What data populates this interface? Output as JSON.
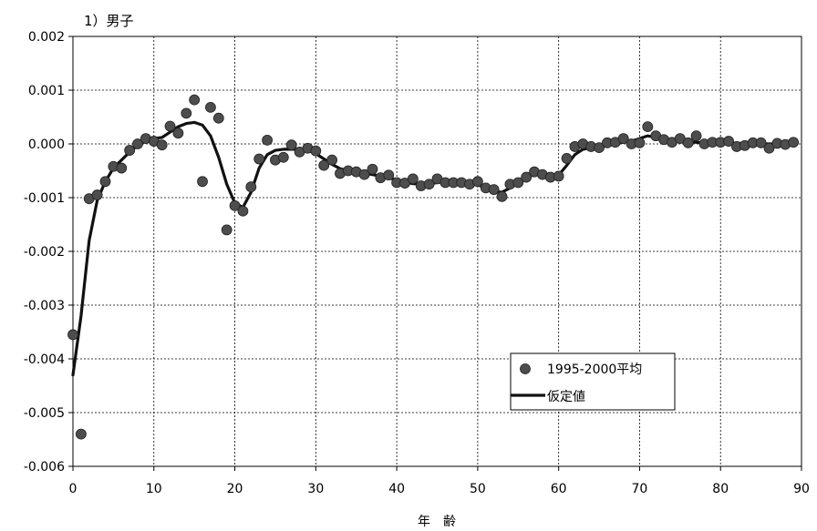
{
  "chart_data": {
    "type": "scatter",
    "title": "1）男子",
    "xlabel": "年　齢",
    "ylabel": "",
    "xlim": [
      0,
      90
    ],
    "ylim": [
      -0.006,
      0.002
    ],
    "x_ticks": [
      "0",
      "10",
      "20",
      "30",
      "40",
      "50",
      "60",
      "70",
      "80",
      "90"
    ],
    "y_ticks": [
      "0.002",
      "0.001",
      "0.000",
      "-0.001",
      "-0.002",
      "-0.003",
      "-0.004",
      "-0.005",
      "-0.006"
    ],
    "grid": true,
    "legend_position": "lower-right",
    "series": [
      {
        "name": "1995-2000平均",
        "kind": "points",
        "color": "#4d4d4d",
        "x": [
          0,
          1,
          2,
          3,
          4,
          5,
          6,
          7,
          8,
          9,
          10,
          11,
          12,
          13,
          14,
          15,
          16,
          17,
          18,
          19,
          20,
          21,
          22,
          23,
          24,
          25,
          26,
          27,
          28,
          29,
          30,
          31,
          32,
          33,
          34,
          35,
          36,
          37,
          38,
          39,
          40,
          41,
          42,
          43,
          44,
          45,
          46,
          47,
          48,
          49,
          50,
          51,
          52,
          53,
          54,
          55,
          56,
          57,
          58,
          59,
          60,
          61,
          62,
          63,
          64,
          65,
          66,
          67,
          68,
          69,
          70,
          71,
          72,
          73,
          74,
          75,
          76,
          77,
          78,
          79,
          80,
          81,
          82,
          83,
          84,
          85,
          86,
          87,
          88,
          89
        ],
        "y": [
          -0.00355,
          -0.0054,
          -0.00102,
          -0.00095,
          -0.0007,
          -0.00042,
          -0.00045,
          -0.00012,
          0.0,
          0.0001,
          5e-05,
          -2e-05,
          0.00033,
          0.0002,
          0.00057,
          0.00082,
          -0.0007,
          0.00068,
          0.00048,
          -0.0016,
          -0.00115,
          -0.00125,
          -0.0008,
          -0.00028,
          7e-05,
          -0.0003,
          -0.00025,
          -2e-05,
          -0.00015,
          -8e-05,
          -0.00013,
          -0.0004,
          -0.0003,
          -0.00055,
          -0.0005,
          -0.00052,
          -0.00057,
          -0.00047,
          -0.00063,
          -0.00058,
          -0.00072,
          -0.00073,
          -0.00065,
          -0.00078,
          -0.00075,
          -0.00065,
          -0.00072,
          -0.00072,
          -0.00072,
          -0.00075,
          -0.0007,
          -0.00082,
          -0.00085,
          -0.00098,
          -0.00075,
          -0.00072,
          -0.00062,
          -0.00052,
          -0.00057,
          -0.00062,
          -0.0006,
          -0.00027,
          -5e-05,
          0.0,
          -5e-05,
          -7e-05,
          2e-05,
          3e-05,
          0.0001,
          0.0,
          2e-05,
          0.00032,
          0.00015,
          8e-05,
          3e-05,
          0.0001,
          2e-05,
          0.00015,
          0.0,
          3e-05,
          3e-05,
          5e-05,
          -5e-05,
          -3e-05,
          2e-05,
          2e-05,
          -8e-05,
          1e-05,
          -1e-05,
          3e-05
        ]
      },
      {
        "name": "仮定値",
        "kind": "line",
        "color": "#111111",
        "x": [
          0,
          1,
          2,
          3,
          4,
          5,
          6,
          7,
          8,
          9,
          10,
          11,
          12,
          13,
          14,
          15,
          16,
          17,
          18,
          19,
          20,
          21,
          22,
          23,
          24,
          25,
          26,
          27,
          28,
          29,
          30,
          31,
          32,
          33,
          34,
          35,
          36,
          37,
          38,
          39,
          40,
          41,
          42,
          43,
          44,
          45,
          46,
          47,
          48,
          49,
          50,
          51,
          52,
          53,
          54,
          55,
          56,
          57,
          58,
          59,
          60,
          61,
          62,
          63,
          64,
          65,
          66,
          67,
          68,
          69,
          70,
          71,
          72,
          73,
          74,
          75,
          76,
          77,
          78,
          79,
          80,
          81,
          82,
          83,
          84,
          85,
          86,
          87,
          88,
          89
        ],
        "y": [
          -0.0043,
          -0.0032,
          -0.0018,
          -0.00105,
          -0.0007,
          -0.00045,
          -0.0003,
          -0.00015,
          -3e-05,
          5e-05,
          0.0001,
          0.00012,
          0.00022,
          0.00032,
          0.00038,
          0.0004,
          0.00035,
          0.00015,
          -0.00025,
          -0.00075,
          -0.0011,
          -0.00118,
          -0.0009,
          -0.00045,
          -0.0002,
          -0.00012,
          -0.0001,
          -0.0001,
          -0.0001,
          -0.00012,
          -0.00018,
          -0.00028,
          -0.00038,
          -0.00046,
          -0.0005,
          -0.00053,
          -0.00055,
          -0.00057,
          -0.0006,
          -0.00063,
          -0.00067,
          -0.00071,
          -0.00074,
          -0.00075,
          -0.00074,
          -0.00072,
          -0.0007,
          -0.0007,
          -0.0007,
          -0.00072,
          -0.00076,
          -0.00082,
          -0.00088,
          -0.0009,
          -0.00082,
          -0.00072,
          -0.00063,
          -0.00057,
          -0.00058,
          -0.00062,
          -0.00058,
          -0.0004,
          -0.0002,
          -0.0001,
          -7e-05,
          -5e-05,
          -3e-05,
          0.0,
          3e-05,
          5e-05,
          0.0001,
          0.00015,
          0.00012,
          8e-05,
          6e-05,
          5e-05,
          4e-05,
          3e-05,
          2e-05,
          2e-05,
          2e-05,
          2e-05,
          1e-05,
          1e-05,
          1e-05,
          0.0,
          0.0,
          0.0,
          0.0,
          0.0
        ]
      }
    ]
  }
}
